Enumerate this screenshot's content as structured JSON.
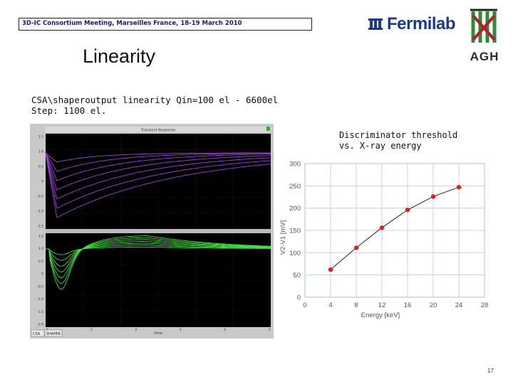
{
  "header": {
    "meeting": "3D-IC Consortium Meeting, Marseilles France, 18-19 March 2010"
  },
  "logos": {
    "fermilab": "Fermilab",
    "agh": "AGH"
  },
  "slide": {
    "title": "Linearity",
    "desc_line1": "CSA\\shaperoutput linearity Qin=100 el - 6600el",
    "desc_line2": "Step: 1100 el.",
    "page_number": "17"
  },
  "scope": {
    "title": "Transient Response",
    "top_yticks": [
      "1.5",
      "1.0",
      "0.5",
      "0",
      "-0.5",
      "-1.0",
      "-1.5"
    ],
    "bottom_yticks": [
      "1.5",
      "1.0",
      "0.5",
      "0",
      "-0.5",
      "-1.0",
      "-1.5",
      "-2.0"
    ],
    "xticks": [
      "0",
      "1",
      "2",
      "3",
      "4",
      "5"
    ],
    "xlabel": "time",
    "tab1": "CSA",
    "tab2": "SHAPER"
  },
  "colors": {
    "purple_trace": "#a040e0",
    "green_trace": "#40e040",
    "scope_bg": "#000000",
    "marker": "#e02020"
  },
  "chart_data": {
    "type": "line",
    "title": "Discriminator threshold\nvs. X-ray energy",
    "xlabel": "Energy [keV]",
    "ylabel": "V2-V1 [mV]",
    "x": [
      4,
      8,
      12,
      16,
      20,
      24
    ],
    "y": [
      62,
      111,
      156,
      196,
      226,
      247
    ],
    "xlim": [
      0,
      28
    ],
    "ylim": [
      0,
      300
    ],
    "xticks": [
      "0",
      "4",
      "8",
      "12",
      "16",
      "20",
      "24",
      "28"
    ],
    "yticks": [
      "0",
      "50",
      "100",
      "150",
      "200",
      "250",
      "300"
    ],
    "grid": true
  }
}
